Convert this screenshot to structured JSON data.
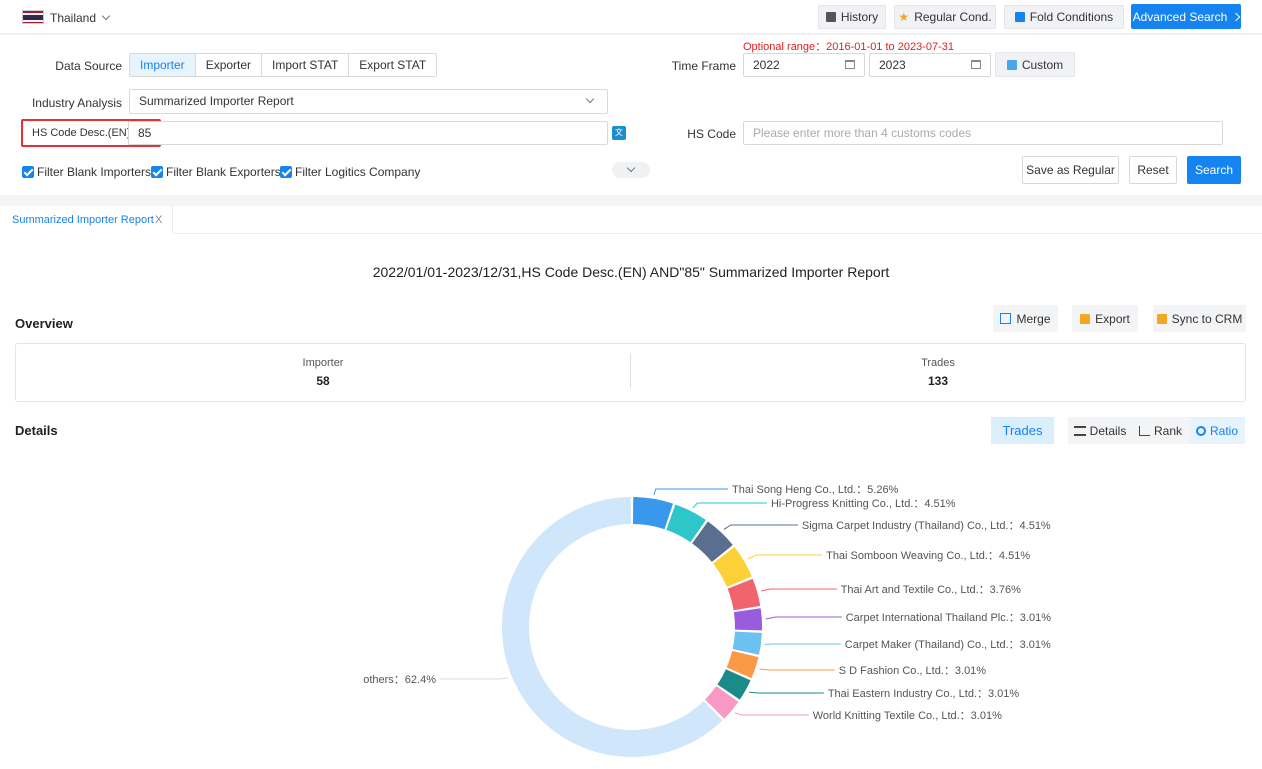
{
  "topbar": {
    "country": "Thailand",
    "history_label": "History",
    "regular_label": "Regular Cond.",
    "fold_label": "Fold Conditions",
    "advanced_label": "Advanced Search"
  },
  "search": {
    "optional_range": "Optional range：2016-01-01 to 2023-07-31",
    "data_source_label": "Data Source",
    "data_source_options": [
      "Importer",
      "Exporter",
      "Import STAT",
      "Export STAT"
    ],
    "time_frame_label": "Time Frame",
    "time_from": "2022",
    "time_to": "2023",
    "custom_label": "Custom",
    "industry_label": "Industry Analysis",
    "industry_value": "Summarized Importer Report",
    "hs_desc_label": "HS Code Desc.(EN)",
    "hs_desc_value": "85",
    "hs_code_label": "HS Code",
    "hs_code_placeholder": "Please enter more than 4 customs codes",
    "filters": [
      "Filter Blank Importers",
      "Filter Blank Exporters",
      "Filter Logitics Company"
    ],
    "save_regular_label": "Save as Regular",
    "reset_label": "Reset",
    "search_label": "Search"
  },
  "tab": {
    "label": "Summarized Importer Report",
    "close": "X"
  },
  "report": {
    "title": "2022/01/01-2023/12/31,HS Code Desc.(EN) AND\"85\" Summarized Importer Report",
    "overview_label": "Overview",
    "merge_label": "Merge",
    "export_label": "Export",
    "sync_label": "Sync to CRM",
    "importer_label": "Importer",
    "importer_value": "58",
    "trades_label": "Trades",
    "trades_value": "133",
    "details_label": "Details",
    "trades_button": "Trades",
    "view_tabs": [
      "Details",
      "Rank",
      "Ratio"
    ]
  },
  "colors": {
    "primary": "#1583f0",
    "others": "#cfe6fb"
  },
  "chart_data": {
    "type": "pie",
    "style": "donut",
    "slices": [
      {
        "label": "Thai Song Heng Co., Ltd.",
        "value": 5.26,
        "display": "5.26%",
        "color": "#3a98ec"
      },
      {
        "label": "Hi-Progress Knitting Co., Ltd.",
        "value": 4.51,
        "display": "4.51%",
        "color": "#2ec7c9"
      },
      {
        "label": "Sigma Carpet Industry (Thailand) Co., Ltd.",
        "value": 4.51,
        "display": "4.51%",
        "color": "#5a6f8f"
      },
      {
        "label": "Thai Somboon Weaving Co., Ltd.",
        "value": 4.51,
        "display": "4.51%",
        "color": "#fcd137"
      },
      {
        "label": "Thai Art and Textile Co., Ltd.",
        "value": 3.76,
        "display": "3.76%",
        "color": "#f1646e"
      },
      {
        "label": "Carpet International Thailand Plc.",
        "value": 3.01,
        "display": "3.01%",
        "color": "#9a5bdc"
      },
      {
        "label": "Carpet Maker (Thailand) Co., Ltd.",
        "value": 3.01,
        "display": "3.01%",
        "color": "#6cc2ee"
      },
      {
        "label": "S D Fashion Co., Ltd.",
        "value": 3.01,
        "display": "3.01%",
        "color": "#fc9947"
      },
      {
        "label": "Thai Eastern Industry Co., Ltd.",
        "value": 3.01,
        "display": "3.01%",
        "color": "#1d8a8a"
      },
      {
        "label": "World Knitting Textile Co., Ltd.",
        "value": 3.01,
        "display": "3.01%",
        "color": "#f899c4"
      },
      {
        "label": "others",
        "value": 62.4,
        "display": "62.4%",
        "color": "#cfe6fb"
      }
    ]
  }
}
